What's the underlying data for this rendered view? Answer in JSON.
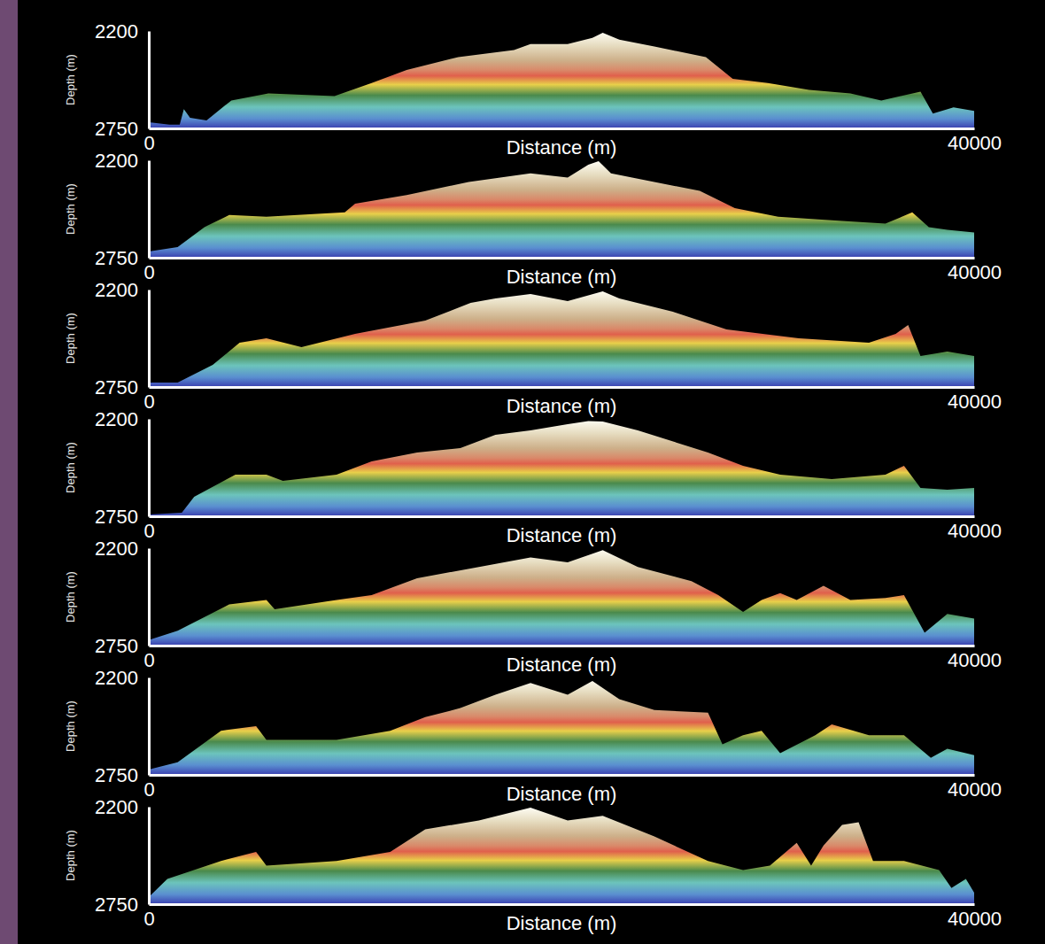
{
  "chart_data": [
    {
      "type": "area",
      "x_label": "Distance (m)",
      "y_label": "Depth (m)",
      "xlim": [
        0,
        40000
      ],
      "xticks": [
        0,
        40000
      ],
      "ylim": [
        2750,
        2200
      ],
      "yticks": [
        2200,
        2750
      ],
      "x": [
        0,
        1000,
        1500,
        1700,
        2000,
        2800,
        4000,
        5800,
        9000,
        10800,
        12500,
        15000,
        17700,
        18500,
        20300,
        21500,
        22000,
        22800,
        24500,
        27000,
        28300,
        30000,
        32000,
        34000,
        35500,
        37400,
        38000,
        39000,
        40000
      ],
      "values": [
        2715,
        2729,
        2729,
        2641,
        2690,
        2705,
        2592,
        2553,
        2568,
        2494,
        2420,
        2347,
        2308,
        2274,
        2274,
        2239,
        2210,
        2249,
        2288,
        2347,
        2470,
        2494,
        2533,
        2553,
        2592,
        2543,
        2666,
        2631,
        2651
      ]
    },
    {
      "type": "area",
      "x_label": "Distance (m)",
      "y_label": "Depth (m)",
      "xlim": [
        0,
        40000
      ],
      "xticks": [
        0,
        40000
      ],
      "ylim": [
        2750,
        2200
      ],
      "yticks": [
        2200,
        2750
      ],
      "x": [
        0,
        1400,
        2700,
        3900,
        5700,
        9500,
        10000,
        12500,
        15500,
        18500,
        20300,
        21300,
        21800,
        22400,
        24500,
        26700,
        28400,
        30500,
        33600,
        35700,
        37000,
        37800,
        38700,
        40000
      ],
      "values": [
        2715,
        2690,
        2577,
        2509,
        2519,
        2494,
        2445,
        2396,
        2323,
        2274,
        2298,
        2225,
        2205,
        2274,
        2323,
        2372,
        2470,
        2519,
        2543,
        2558,
        2494,
        2577,
        2592,
        2607
      ]
    },
    {
      "type": "area",
      "x_label": "Distance (m)",
      "y_label": "Depth (m)",
      "xlim": [
        0,
        40000
      ],
      "xticks": [
        0,
        40000
      ],
      "ylim": [
        2750,
        2200
      ],
      "yticks": [
        2200,
        2750
      ],
      "x": [
        0,
        1400,
        3100,
        4400,
        5700,
        7400,
        10000,
        13400,
        15600,
        16800,
        18500,
        20300,
        22000,
        22800,
        25400,
        28000,
        31500,
        34900,
        36200,
        36800,
        37400,
        38700,
        40000
      ],
      "values": [
        2725,
        2725,
        2625,
        2500,
        2475,
        2525,
        2450,
        2375,
        2275,
        2250,
        2225,
        2265,
        2210,
        2250,
        2325,
        2425,
        2475,
        2500,
        2450,
        2400,
        2575,
        2550,
        2575
      ]
    },
    {
      "type": "area",
      "x_label": "Distance (m)",
      "y_label": "Depth (m)",
      "xlim": [
        0,
        40000
      ],
      "xticks": [
        0,
        40000
      ],
      "ylim": [
        2750,
        2200
      ],
      "yticks": [
        2200,
        2750
      ],
      "x": [
        0,
        1600,
        2200,
        4200,
        5700,
        6500,
        9100,
        10800,
        13000,
        15100,
        16800,
        18500,
        20300,
        21300,
        22000,
        23700,
        27100,
        28800,
        30600,
        33100,
        35700,
        36600,
        37400,
        38700,
        40000
      ],
      "values": [
        2740,
        2730,
        2640,
        2515,
        2515,
        2550,
        2515,
        2440,
        2390,
        2365,
        2290,
        2265,
        2230,
        2212,
        2215,
        2265,
        2390,
        2465,
        2515,
        2540,
        2515,
        2465,
        2590,
        2600,
        2590
      ]
    },
    {
      "type": "area",
      "x_label": "Distance (m)",
      "y_label": "Depth (m)",
      "xlim": [
        0,
        40000
      ],
      "xticks": [
        0,
        40000
      ],
      "ylim": [
        2750,
        2200
      ],
      "yticks": [
        2200,
        2750
      ],
      "x": [
        0,
        1400,
        3900,
        5700,
        6100,
        9100,
        10800,
        13000,
        16000,
        18500,
        20300,
        22000,
        23700,
        26300,
        27600,
        28800,
        29700,
        30600,
        31400,
        32700,
        34000,
        35700,
        36600,
        37600,
        38700,
        40000
      ],
      "values": [
        2719,
        2666,
        2518,
        2492,
        2545,
        2492,
        2465,
        2370,
        2306,
        2253,
        2280,
        2211,
        2306,
        2386,
        2465,
        2560,
        2492,
        2454,
        2492,
        2412,
        2492,
        2481,
        2465,
        2677,
        2571,
        2598
      ]
    },
    {
      "type": "area",
      "x_label": "Distance (m)",
      "y_label": "Depth (m)",
      "xlim": [
        0,
        40000
      ],
      "xticks": [
        0,
        40000
      ],
      "ylim": [
        2750,
        2200
      ],
      "yticks": [
        2200,
        2750
      ],
      "x": [
        0,
        1400,
        3500,
        5200,
        5700,
        9100,
        11700,
        13400,
        15100,
        16800,
        18500,
        20300,
        21500,
        22800,
        24500,
        27100,
        27800,
        28800,
        29700,
        30600,
        32300,
        33100,
        34900,
        36600,
        37900,
        38700,
        40000
      ],
      "values": [
        2720,
        2679,
        2501,
        2475,
        2552,
        2552,
        2501,
        2424,
        2373,
        2297,
        2231,
        2297,
        2220,
        2322,
        2384,
        2399,
        2577,
        2526,
        2501,
        2628,
        2526,
        2465,
        2526,
        2526,
        2654,
        2603,
        2639
      ]
    },
    {
      "type": "area",
      "x_label": "Distance (m)",
      "y_label": "Depth (m)",
      "xlim": [
        0,
        40000
      ],
      "xticks": [
        0,
        40000
      ],
      "ylim": [
        2750,
        2200
      ],
      "yticks": [
        2200,
        2750
      ],
      "x": [
        0,
        900,
        3500,
        5200,
        5700,
        9100,
        11700,
        13400,
        16000,
        18500,
        20300,
        22000,
        24500,
        27100,
        28800,
        30100,
        31400,
        32100,
        32700,
        33600,
        34400,
        35100,
        36600,
        38300,
        38900,
        39600,
        40000
      ],
      "values": [
        2710,
        2608,
        2506,
        2455,
        2532,
        2506,
        2455,
        2328,
        2277,
        2205,
        2277,
        2251,
        2368,
        2506,
        2557,
        2532,
        2404,
        2532,
        2419,
        2302,
        2287,
        2506,
        2506,
        2557,
        2659,
        2608,
        2685
      ]
    }
  ]
}
